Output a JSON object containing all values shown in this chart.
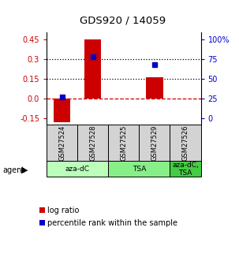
{
  "title": "GDS920 / 14059",
  "samples": [
    "GSM27524",
    "GSM27528",
    "GSM27525",
    "GSM27529",
    "GSM27526"
  ],
  "log_ratios": [
    -0.18,
    0.45,
    0.0,
    0.16,
    0.0
  ],
  "percentile_ranks": [
    0.27,
    0.78,
    null,
    0.68,
    null
  ],
  "ylim": [
    -0.2,
    0.5
  ],
  "yticks_left": [
    -0.15,
    0.0,
    0.15,
    0.3,
    0.45
  ],
  "yticks_right_pct": [
    0,
    25,
    50,
    75,
    100
  ],
  "hlines": [
    0.15,
    0.3
  ],
  "bar_color": "#cc0000",
  "point_color": "#0000cc",
  "zero_line_color": "#cc0000",
  "agent_label": "agent",
  "legend_log": "log ratio",
  "legend_pct": "percentile rank within the sample",
  "background_color": "#ffffff",
  "tick_color_left": "#cc0000",
  "tick_color_right": "#0000cc",
  "r_min": -0.15,
  "r_max": 0.45,
  "group_defs": [
    [
      0,
      2,
      "aza-dC",
      "#bbffbb"
    ],
    [
      2,
      4,
      "TSA",
      "#88ee88"
    ],
    [
      4,
      5,
      "aza-dC,\nTSA",
      "#44cc44"
    ]
  ]
}
